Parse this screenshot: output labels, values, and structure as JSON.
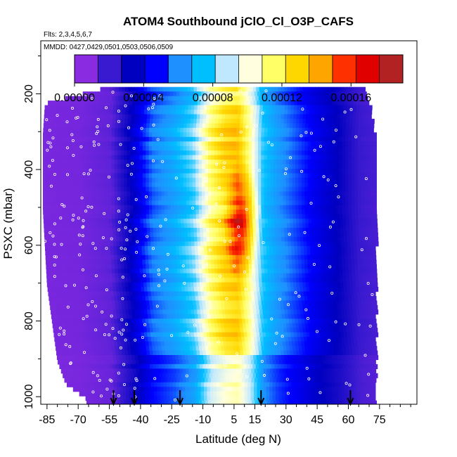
{
  "chart_data": {
    "type": "heatmap",
    "title": "ATOM4 Southbound jClO_Cl_O3P_CAFS",
    "subtitle_flights": "Flts: 2,3,4,5,6,7",
    "subtitle_dates": "MMDD: 0427,0429,0501,0503,0506,0509",
    "xlabel": "Latitude (deg N)",
    "ylabel": "PSXC (mbar)",
    "xlim": [
      -88,
      93
    ],
    "ylim": [
      1020,
      60
    ],
    "y_reversed": true,
    "x_ticks": [
      -85,
      -70,
      -55,
      -40,
      -25,
      -10,
      5,
      15,
      30,
      45,
      60,
      75
    ],
    "x_tick_labels": [
      "-85",
      "-70",
      "-55",
      "-40",
      "-25",
      "-10",
      "5",
      "15",
      "30",
      "45",
      "60",
      "75"
    ],
    "y_ticks": [
      200,
      400,
      600,
      800,
      1000
    ],
    "y_tick_labels": [
      "200",
      "400",
      "600",
      "800",
      "1000"
    ],
    "colorbar": {
      "min": 0.0,
      "max": 0.00019,
      "tick_values": [
        0.0,
        4e-05,
        8e-05,
        0.00012,
        0.00016
      ],
      "tick_labels": [
        "0.00000",
        "0.00004",
        "0.00008",
        "0.00012",
        "0.00016"
      ],
      "colors": [
        "#8a2be2",
        "#3a1ad0",
        "#0000c0",
        "#0000ff",
        "#1e90ff",
        "#00bfff",
        "#bfe8ff",
        "#ffffe0",
        "#ffff66",
        "#ffd700",
        "#ffa500",
        "#ff3000",
        "#e00000",
        "#b22222"
      ]
    },
    "profile_lat_coverage": [
      {
        "p": 180,
        "lat": [
          -58,
          68
        ]
      },
      {
        "p": 220,
        "lat": [
          -86,
          70
        ]
      },
      {
        "p": 300,
        "lat": [
          -87,
          72
        ]
      },
      {
        "p": 500,
        "lat": [
          -87,
          73
        ]
      },
      {
        "p": 700,
        "lat": [
          -85,
          73
        ]
      },
      {
        "p": 900,
        "lat": [
          -80,
          73
        ]
      },
      {
        "p": 960,
        "lat": [
          -76,
          73
        ]
      },
      {
        "p": 1000,
        "lat": [
          -66,
          73
        ]
      }
    ],
    "latitude_profile": [
      {
        "lat": -85,
        "value": 3e-06
      },
      {
        "lat": -70,
        "value": 4e-06
      },
      {
        "lat": -55,
        "value": 8e-06
      },
      {
        "lat": -45,
        "value": 3e-05
      },
      {
        "lat": -35,
        "value": 5.5e-05
      },
      {
        "lat": -25,
        "value": 6.5e-05
      },
      {
        "lat": -15,
        "value": 8e-05
      },
      {
        "lat": -7,
        "value": 0.000115
      },
      {
        "lat": 0,
        "value": 0.00013
      },
      {
        "lat": 6,
        "value": 0.000135
      },
      {
        "lat": 12,
        "value": 0.00011
      },
      {
        "lat": 18,
        "value": 7.5e-05
      },
      {
        "lat": 25,
        "value": 6.2e-05
      },
      {
        "lat": 35,
        "value": 5e-05
      },
      {
        "lat": 45,
        "value": 3.8e-05
      },
      {
        "lat": 55,
        "value": 2.8e-05
      },
      {
        "lat": 65,
        "value": 1.5e-05
      },
      {
        "lat": 73,
        "value": 1.2e-05
      }
    ],
    "max_region": {
      "lat": 8,
      "p": 530,
      "value": 0.00017
    },
    "arrows_lat": [
      -53,
      -43,
      -21,
      18,
      61
    ],
    "legend_placement": "top"
  }
}
